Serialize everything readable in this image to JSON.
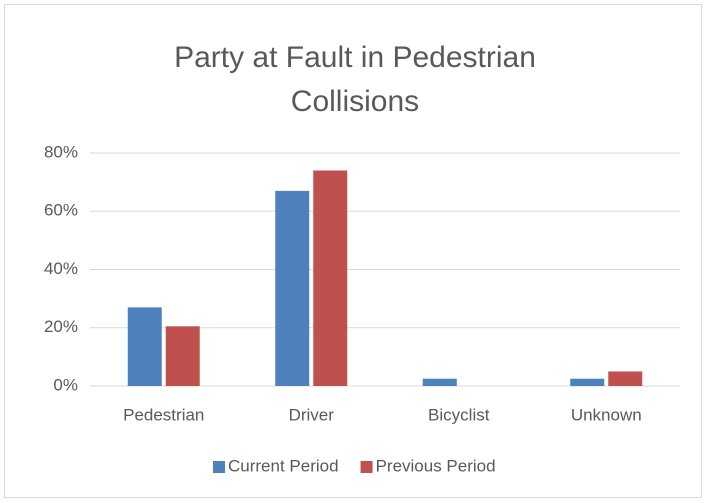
{
  "chart_data": {
    "type": "bar",
    "title": "Party at Fault in Pedestrian Collisions",
    "categories": [
      "Pedestrian",
      "Driver",
      "Bicyclist",
      "Unknown"
    ],
    "series": [
      {
        "name": "Current Period",
        "color": "#4f81bd",
        "values": [
          27,
          67,
          2.5,
          2.5
        ]
      },
      {
        "name": "Previous Period",
        "color": "#c0504d",
        "values": [
          20.5,
          74,
          0,
          5
        ]
      }
    ],
    "ylim": [
      0,
      80
    ],
    "yticks": [
      {
        "value": 0,
        "label": "0%"
      },
      {
        "value": 20,
        "label": "20%"
      },
      {
        "value": 40,
        "label": "40%"
      },
      {
        "value": 60,
        "label": "60%"
      },
      {
        "value": 80,
        "label": "80%"
      }
    ],
    "grid": true,
    "legend": "bottom"
  }
}
